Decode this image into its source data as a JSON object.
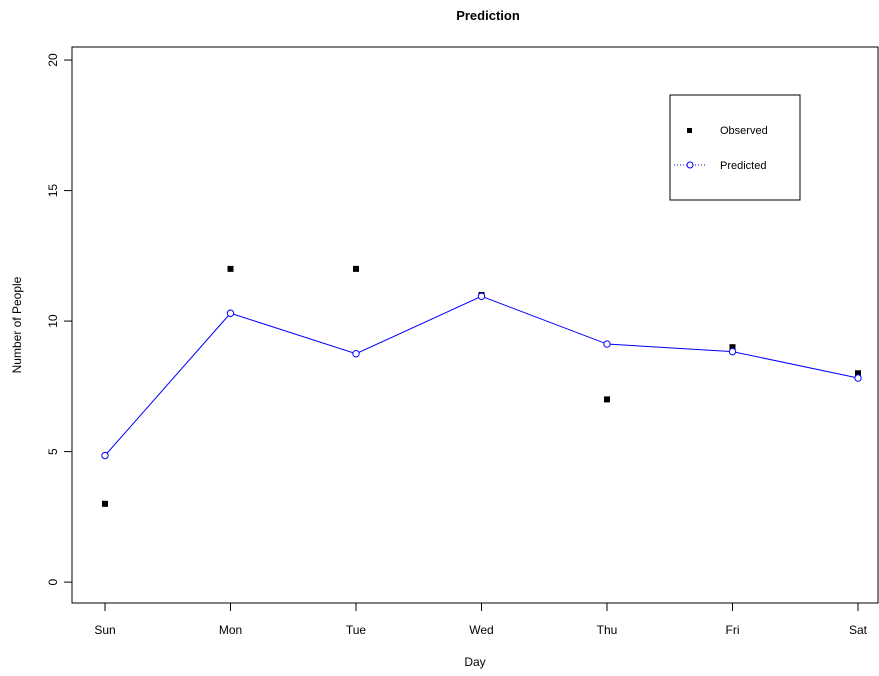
{
  "chart_data": {
    "type": "scatter",
    "title": "Prediction",
    "xlabel": "Day",
    "ylabel": "Number of People",
    "categories": [
      "Sun",
      "Mon",
      "Tue",
      "Wed",
      "Thu",
      "Fri",
      "Sat"
    ],
    "ylim": [
      -0.8,
      20.5
    ],
    "yticks": [
      0,
      5,
      10,
      15,
      20
    ],
    "grid": false,
    "legend_position": "top-right",
    "series": [
      {
        "name": "Observed",
        "style": "points",
        "marker": "filled-square",
        "color": "#000000",
        "values": [
          3,
          12,
          12,
          11,
          7,
          9,
          8
        ]
      },
      {
        "name": "Predicted",
        "style": "line-and-points",
        "marker": "open-circle",
        "line": "solid",
        "color": "#0000ff",
        "values": [
          4.85,
          10.3,
          8.75,
          10.95,
          9.12,
          8.83,
          7.82
        ]
      }
    ]
  }
}
